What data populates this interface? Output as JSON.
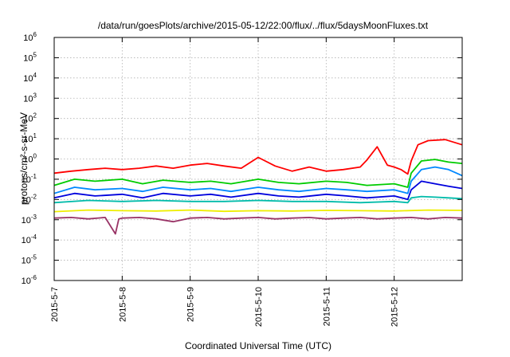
{
  "chart_data": {
    "type": "line",
    "title": "/data/run/goesPlots/archive/2015-05-12/22:00/flux/../flux/5daysMoonFluxes.txt",
    "xlabel": "Coordinated Universal Time (UTC)",
    "ylabel": "protons/cm²-s-sr-MeV",
    "y_scale": "log",
    "ylim": [
      1e-06,
      1000000.0
    ],
    "xlim_days": [
      0,
      6
    ],
    "grid": true,
    "legend": "none",
    "x_ticks": [
      {
        "day": 0,
        "label": "2015-5-7"
      },
      {
        "day": 1,
        "label": "2015-5-8"
      },
      {
        "day": 2,
        "label": "2015-5-9"
      },
      {
        "day": 3,
        "label": "2015-5-10"
      },
      {
        "day": 4,
        "label": "2015-5-11"
      },
      {
        "day": 5,
        "label": "2015-5-12"
      }
    ],
    "y_ticks": [
      {
        "exp": 6,
        "label": "6"
      },
      {
        "exp": 5,
        "label": "5"
      },
      {
        "exp": 4,
        "label": "4"
      },
      {
        "exp": 3,
        "label": "3"
      },
      {
        "exp": 2,
        "label": "2"
      },
      {
        "exp": 1,
        "label": "1"
      },
      {
        "exp": 0,
        "label": "0"
      },
      {
        "exp": -1,
        "label": "-1"
      },
      {
        "exp": -2,
        "label": "-2"
      },
      {
        "exp": -3,
        "label": "-3"
      },
      {
        "exp": -4,
        "label": "-4"
      },
      {
        "exp": -5,
        "label": "-5"
      },
      {
        "exp": -6,
        "label": "-6"
      }
    ],
    "y_tick_base": "10",
    "series": [
      {
        "color": "#ff0000",
        "x": [
          0,
          0.25,
          0.5,
          0.75,
          1.0,
          1.25,
          1.5,
          1.75,
          2.0,
          2.25,
          2.5,
          2.75,
          3.0,
          3.25,
          3.5,
          3.75,
          4.0,
          4.25,
          4.5,
          4.6,
          4.75,
          4.9,
          5.0,
          5.1,
          5.2,
          5.25,
          5.35,
          5.5,
          5.75,
          6.0
        ],
        "y": [
          0.2,
          0.25,
          0.3,
          0.35,
          0.3,
          0.35,
          0.45,
          0.35,
          0.5,
          0.6,
          0.45,
          0.35,
          1.2,
          0.45,
          0.25,
          0.4,
          0.25,
          0.3,
          0.4,
          0.9,
          4.0,
          0.5,
          0.4,
          0.3,
          0.18,
          0.8,
          5.0,
          8.0,
          9.0,
          5.0
        ]
      },
      {
        "color": "#00cc00",
        "x": [
          0,
          0.3,
          0.6,
          1.0,
          1.3,
          1.6,
          2.0,
          2.3,
          2.6,
          3.0,
          3.3,
          3.6,
          4.0,
          4.3,
          4.6,
          5.0,
          5.2,
          5.25,
          5.4,
          5.6,
          5.8,
          6.0
        ],
        "y": [
          0.05,
          0.1,
          0.08,
          0.1,
          0.06,
          0.09,
          0.07,
          0.08,
          0.06,
          0.1,
          0.07,
          0.06,
          0.08,
          0.07,
          0.05,
          0.06,
          0.04,
          0.2,
          0.8,
          0.95,
          0.7,
          0.6
        ]
      },
      {
        "color": "#0088ff",
        "x": [
          0,
          0.3,
          0.6,
          1.0,
          1.3,
          1.6,
          2.0,
          2.3,
          2.6,
          3.0,
          3.3,
          3.6,
          4.0,
          4.3,
          4.6,
          5.0,
          5.2,
          5.25,
          5.4,
          5.6,
          5.8,
          6.0
        ],
        "y": [
          0.02,
          0.04,
          0.03,
          0.035,
          0.025,
          0.04,
          0.03,
          0.035,
          0.025,
          0.04,
          0.03,
          0.025,
          0.035,
          0.03,
          0.025,
          0.03,
          0.02,
          0.08,
          0.3,
          0.4,
          0.3,
          0.15
        ]
      },
      {
        "color": "#0000dd",
        "x": [
          0,
          0.3,
          0.6,
          1.0,
          1.3,
          1.6,
          2.0,
          2.3,
          2.6,
          3.0,
          3.3,
          3.6,
          4.0,
          4.3,
          4.6,
          5.0,
          5.2,
          5.25,
          5.4,
          5.6,
          5.8,
          6.0
        ],
        "y": [
          0.012,
          0.02,
          0.015,
          0.018,
          0.012,
          0.02,
          0.015,
          0.018,
          0.013,
          0.02,
          0.015,
          0.013,
          0.018,
          0.015,
          0.012,
          0.015,
          0.01,
          0.03,
          0.08,
          0.06,
          0.045,
          0.035
        ]
      },
      {
        "color": "#00bbaa",
        "x": [
          0,
          0.5,
          1.0,
          1.5,
          2.0,
          2.5,
          3.0,
          3.5,
          4.0,
          4.5,
          5.0,
          5.2,
          5.25,
          5.4,
          5.6,
          5.8,
          6.0
        ],
        "y": [
          0.007,
          0.009,
          0.008,
          0.009,
          0.008,
          0.008,
          0.009,
          0.008,
          0.008,
          0.007,
          0.008,
          0.007,
          0.012,
          0.014,
          0.013,
          0.012,
          0.011
        ]
      },
      {
        "color": "#eeee00",
        "x": [
          0,
          0.5,
          1.0,
          1.5,
          2.0,
          2.5,
          3.0,
          3.5,
          4.0,
          4.5,
          5.0,
          5.5,
          6.0
        ],
        "y": [
          0.0025,
          0.003,
          0.0028,
          0.0027,
          0.003,
          0.0026,
          0.0028,
          0.0027,
          0.0029,
          0.0028,
          0.0027,
          0.003,
          0.0029
        ]
      },
      {
        "color": "#993366",
        "x": [
          0,
          0.25,
          0.5,
          0.75,
          0.9,
          0.95,
          1.0,
          1.25,
          1.5,
          1.75,
          2.0,
          2.25,
          2.5,
          2.75,
          3.0,
          3.25,
          3.5,
          3.75,
          4.0,
          4.25,
          4.5,
          4.75,
          5.0,
          5.25,
          5.5,
          5.75,
          6.0
        ],
        "y": [
          0.0012,
          0.0013,
          0.0011,
          0.0013,
          0.0002,
          0.0011,
          0.0012,
          0.0013,
          0.0011,
          0.0008,
          0.0012,
          0.0013,
          0.0011,
          0.0012,
          0.0013,
          0.0011,
          0.0012,
          0.0013,
          0.0011,
          0.0012,
          0.0013,
          0.0011,
          0.0012,
          0.0013,
          0.0011,
          0.0013,
          0.0012
        ]
      }
    ]
  }
}
